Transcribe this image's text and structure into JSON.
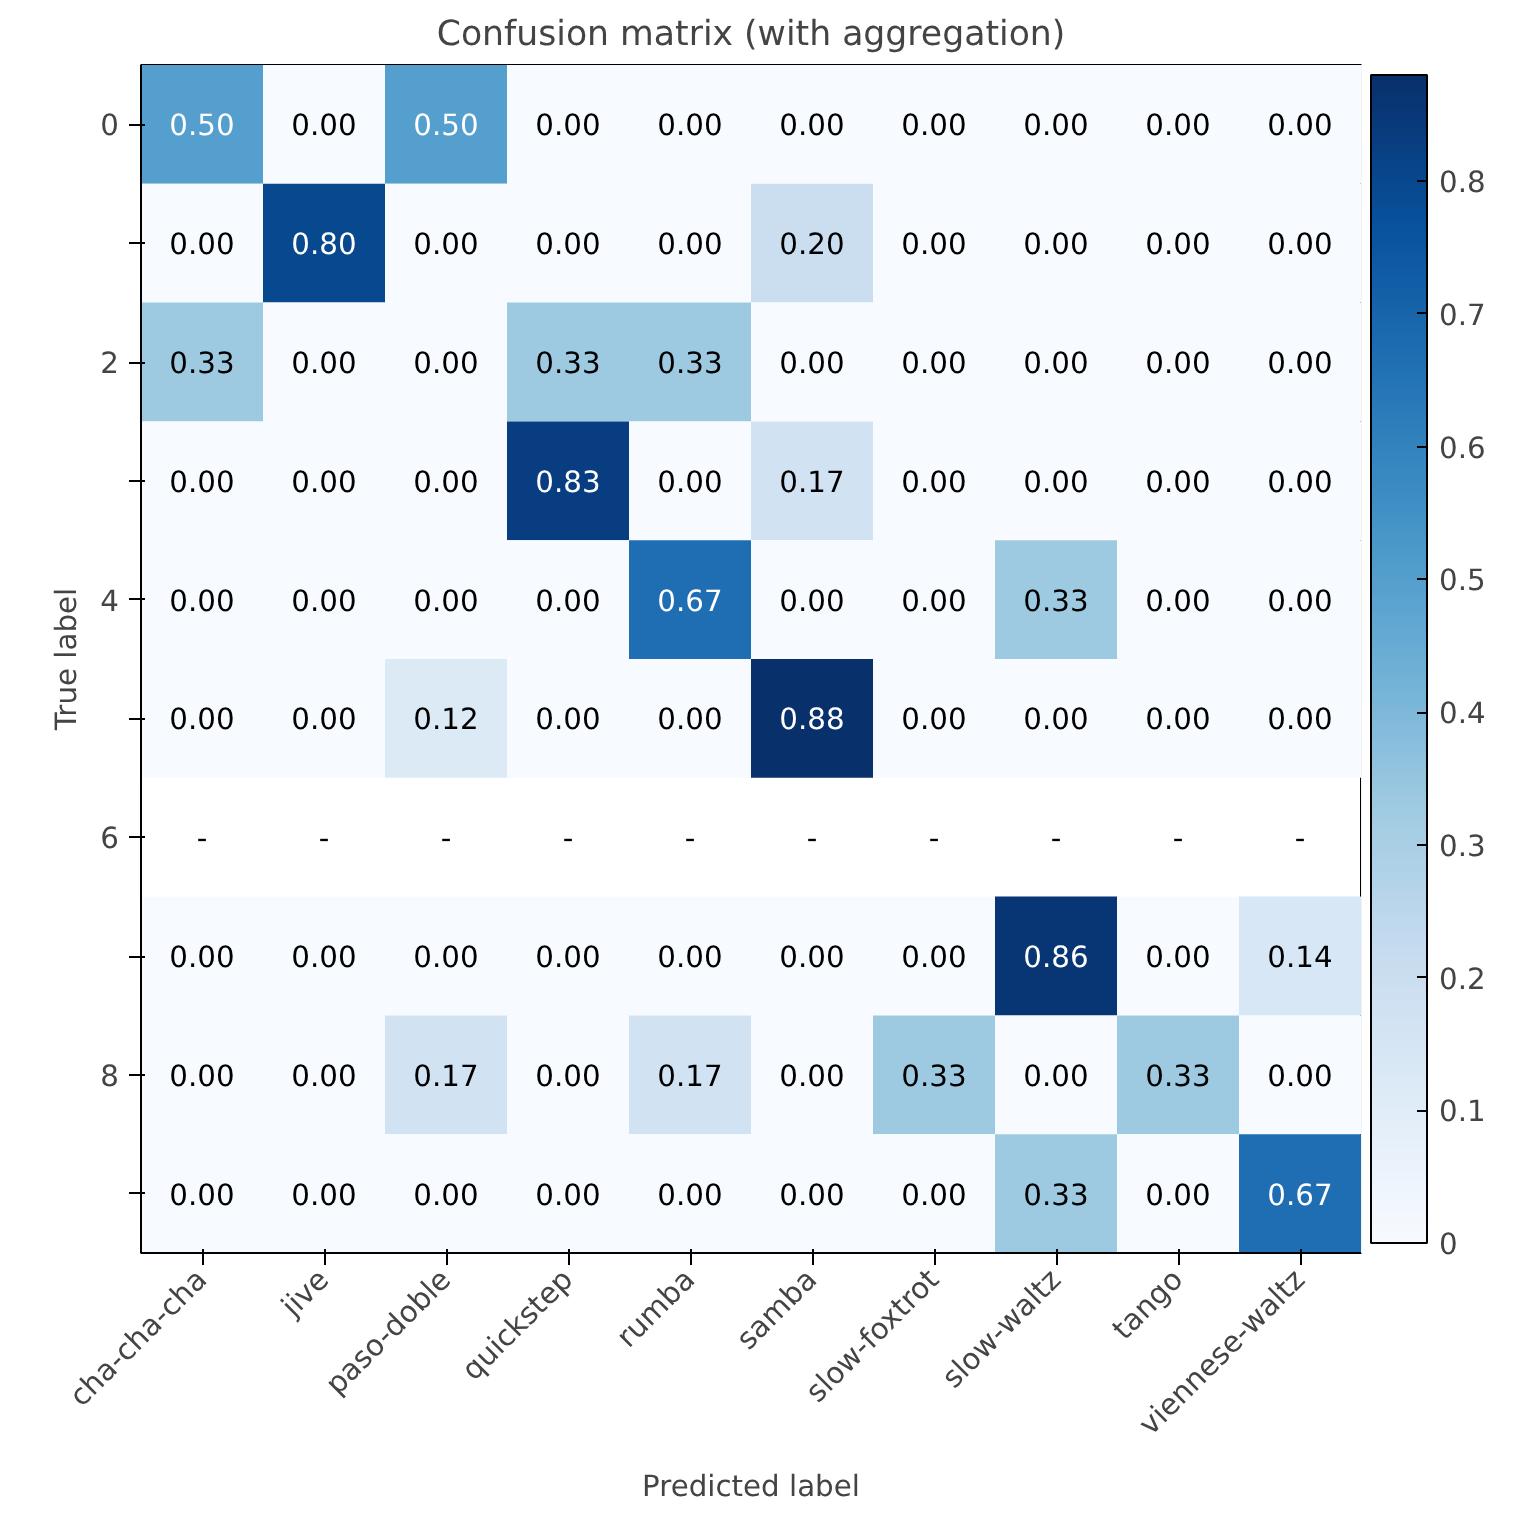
{
  "chart_data": {
    "type": "heatmap",
    "title": "Confusion matrix (with aggregation)",
    "xlabel": "Predicted label",
    "ylabel": "True label",
    "categories": [
      "cha-cha-cha",
      "jive",
      "paso-doble",
      "quickstep",
      "rumba",
      "samba",
      "slow-foxtrot",
      "slow-waltz",
      "tango",
      "viennese-waltz"
    ],
    "y_categories": [
      "0",
      null,
      "2",
      null,
      "4",
      null,
      "6",
      null,
      "8",
      null
    ],
    "cells": [
      [
        0.5,
        0,
        0.5,
        0,
        0,
        0,
        0,
        0,
        0,
        0
      ],
      [
        0,
        0.8,
        0,
        0,
        0,
        0.2,
        0,
        0,
        0,
        0
      ],
      [
        0.33,
        0,
        0,
        0.33,
        0.33,
        0,
        0,
        0,
        0,
        0
      ],
      [
        0,
        0,
        0,
        0.83,
        0,
        0.17,
        0,
        0,
        0,
        0
      ],
      [
        0,
        0,
        0,
        0,
        0.67,
        0,
        0,
        0.33,
        0,
        0
      ],
      [
        0,
        0,
        0.12,
        0,
        0,
        0.88,
        0,
        0,
        0,
        0
      ],
      [
        null,
        null,
        null,
        null,
        null,
        null,
        null,
        null,
        null,
        null
      ],
      [
        0,
        0,
        0,
        0,
        0,
        0,
        0,
        0.86,
        0,
        0.14
      ],
      [
        0,
        0,
        0.17,
        0,
        0.17,
        0,
        0.33,
        0,
        0.33,
        0
      ],
      [
        0,
        0,
        0,
        0,
        0,
        0,
        0,
        0.33,
        0,
        0.67
      ]
    ],
    "cell_labels": [
      [
        "0.50",
        "0.00",
        "0.50",
        "0.00",
        "0.00",
        "0.00",
        "0.00",
        "0.00",
        "0.00",
        "0.00"
      ],
      [
        "0.00",
        "0.80",
        "0.00",
        "0.00",
        "0.00",
        "0.20",
        "0.00",
        "0.00",
        "0.00",
        "0.00"
      ],
      [
        "0.33",
        "0.00",
        "0.00",
        "0.33",
        "0.33",
        "0.00",
        "0.00",
        "0.00",
        "0.00",
        "0.00"
      ],
      [
        "0.00",
        "0.00",
        "0.00",
        "0.83",
        "0.00",
        "0.17",
        "0.00",
        "0.00",
        "0.00",
        "0.00"
      ],
      [
        "0.00",
        "0.00",
        "0.00",
        "0.00",
        "0.67",
        "0.00",
        "0.00",
        "0.33",
        "0.00",
        "0.00"
      ],
      [
        "0.00",
        "0.00",
        "0.12",
        "0.00",
        "0.00",
        "0.88",
        "0.00",
        "0.00",
        "0.00",
        "0.00"
      ],
      [
        "-",
        "-",
        "-",
        "-",
        "-",
        "-",
        "-",
        "-",
        "-",
        "-"
      ],
      [
        "0.00",
        "0.00",
        "0.00",
        "0.00",
        "0.00",
        "0.00",
        "0.00",
        "0.86",
        "0.00",
        "0.14"
      ],
      [
        "0.00",
        "0.00",
        "0.17",
        "0.00",
        "0.17",
        "0.00",
        "0.33",
        "0.00",
        "0.33",
        "0.00"
      ],
      [
        "0.00",
        "0.00",
        "0.00",
        "0.00",
        "0.00",
        "0.00",
        "0.00",
        "0.33",
        "0.00",
        "0.67"
      ]
    ],
    "clim": [
      0,
      0.88
    ],
    "cticks": [
      0,
      0.1,
      0.2,
      0.3,
      0.4,
      0.5,
      0.6,
      0.7,
      0.8
    ],
    "grid": false
  }
}
